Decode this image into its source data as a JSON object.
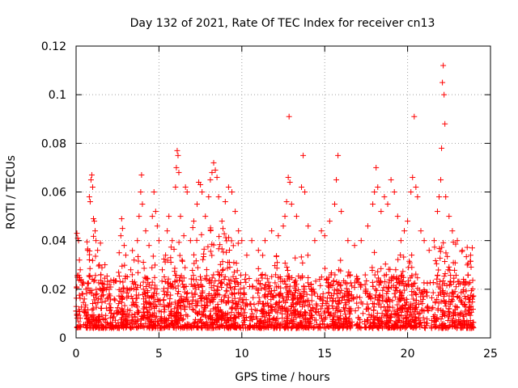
{
  "chart_data": {
    "type": "scatter",
    "title": "Day 132 of 2021, Rate Of TEC Index for receiver cn13",
    "xlabel": "GPS time / hours",
    "ylabel": "ROTI / TECUs",
    "xlim": [
      0,
      25
    ],
    "ylim": [
      0,
      0.12
    ],
    "xticks": [
      0,
      5,
      10,
      15,
      20,
      25
    ],
    "xtick_labels": [
      "0",
      "5",
      "10",
      "15",
      "20",
      "25"
    ],
    "yticks": [
      0,
      0.02,
      0.04,
      0.06,
      0.08,
      0.1,
      0.12
    ],
    "ytick_labels": [
      "0",
      "0.02",
      "0.04",
      "0.06",
      "0.08",
      "0.1",
      "0.12"
    ],
    "grid": true,
    "marker": "+",
    "color": "#ff0000",
    "series": [
      {
        "name": "ROTI",
        "points": [
          [
            0.0,
            0.011
          ],
          [
            0.05,
            0.043
          ],
          [
            0.1,
            0.041
          ],
          [
            0.15,
            0.04
          ],
          [
            0.2,
            0.032
          ],
          [
            0.25,
            0.028
          ],
          [
            0.3,
            0.024
          ],
          [
            0.4,
            0.018
          ],
          [
            0.5,
            0.016
          ],
          [
            0.6,
            0.02
          ],
          [
            0.7,
            0.036
          ],
          [
            0.8,
            0.058
          ],
          [
            0.85,
            0.056
          ],
          [
            0.9,
            0.065
          ],
          [
            0.95,
            0.067
          ],
          [
            1.0,
            0.062
          ],
          [
            1.05,
            0.049
          ],
          [
            1.1,
            0.048
          ],
          [
            1.15,
            0.044
          ],
          [
            1.2,
            0.04
          ],
          [
            1.3,
            0.036
          ],
          [
            1.4,
            0.03
          ],
          [
            1.5,
            0.026
          ],
          [
            1.7,
            0.022
          ],
          [
            2.0,
            0.018
          ],
          [
            2.3,
            0.016
          ],
          [
            2.6,
            0.035
          ],
          [
            2.7,
            0.042
          ],
          [
            2.75,
            0.049
          ],
          [
            2.8,
            0.045
          ],
          [
            2.9,
            0.038
          ],
          [
            3.0,
            0.034
          ],
          [
            3.3,
            0.028
          ],
          [
            3.5,
            0.032
          ],
          [
            3.7,
            0.04
          ],
          [
            3.8,
            0.05
          ],
          [
            3.9,
            0.06
          ],
          [
            3.95,
            0.067
          ],
          [
            4.0,
            0.055
          ],
          [
            4.2,
            0.044
          ],
          [
            4.4,
            0.038
          ],
          [
            4.6,
            0.05
          ],
          [
            4.7,
            0.06
          ],
          [
            4.8,
            0.052
          ],
          [
            4.9,
            0.046
          ],
          [
            5.0,
            0.04
          ],
          [
            5.2,
            0.028
          ],
          [
            5.4,
            0.034
          ],
          [
            5.5,
            0.044
          ],
          [
            5.6,
            0.05
          ],
          [
            5.8,
            0.04
          ],
          [
            6.0,
            0.062
          ],
          [
            6.05,
            0.07
          ],
          [
            6.1,
            0.077
          ],
          [
            6.15,
            0.075
          ],
          [
            6.2,
            0.068
          ],
          [
            6.3,
            0.05
          ],
          [
            6.5,
            0.042
          ],
          [
            6.6,
            0.062
          ],
          [
            6.7,
            0.06
          ],
          [
            6.9,
            0.04
          ],
          [
            7.1,
            0.048
          ],
          [
            7.3,
            0.055
          ],
          [
            7.4,
            0.064
          ],
          [
            7.5,
            0.063
          ],
          [
            7.6,
            0.06
          ],
          [
            7.8,
            0.05
          ],
          [
            8.0,
            0.058
          ],
          [
            8.1,
            0.065
          ],
          [
            8.2,
            0.068
          ],
          [
            8.3,
            0.072
          ],
          [
            8.4,
            0.069
          ],
          [
            8.5,
            0.066
          ],
          [
            8.6,
            0.058
          ],
          [
            8.8,
            0.048
          ],
          [
            9.0,
            0.056
          ],
          [
            9.2,
            0.062
          ],
          [
            9.4,
            0.06
          ],
          [
            9.6,
            0.052
          ],
          [
            9.8,
            0.044
          ],
          [
            10.0,
            0.04
          ],
          [
            10.3,
            0.034
          ],
          [
            10.6,
            0.04
          ],
          [
            11.0,
            0.036
          ],
          [
            11.4,
            0.04
          ],
          [
            11.8,
            0.044
          ],
          [
            12.2,
            0.042
          ],
          [
            12.5,
            0.046
          ],
          [
            12.6,
            0.05
          ],
          [
            12.7,
            0.056
          ],
          [
            12.8,
            0.066
          ],
          [
            12.85,
            0.091
          ],
          [
            12.9,
            0.064
          ],
          [
            13.0,
            0.055
          ],
          [
            13.3,
            0.05
          ],
          [
            13.6,
            0.062
          ],
          [
            13.7,
            0.075
          ],
          [
            13.8,
            0.06
          ],
          [
            14.0,
            0.046
          ],
          [
            14.4,
            0.04
          ],
          [
            14.8,
            0.044
          ],
          [
            15.0,
            0.042
          ],
          [
            15.3,
            0.048
          ],
          [
            15.6,
            0.055
          ],
          [
            15.7,
            0.065
          ],
          [
            15.8,
            0.075
          ],
          [
            16.0,
            0.052
          ],
          [
            16.4,
            0.04
          ],
          [
            16.8,
            0.038
          ],
          [
            17.2,
            0.04
          ],
          [
            17.6,
            0.046
          ],
          [
            17.9,
            0.055
          ],
          [
            18.0,
            0.06
          ],
          [
            18.1,
            0.07
          ],
          [
            18.2,
            0.062
          ],
          [
            18.4,
            0.052
          ],
          [
            18.6,
            0.058
          ],
          [
            18.8,
            0.055
          ],
          [
            19.0,
            0.065
          ],
          [
            19.2,
            0.06
          ],
          [
            19.4,
            0.05
          ],
          [
            19.6,
            0.04
          ],
          [
            19.8,
            0.044
          ],
          [
            20.0,
            0.048
          ],
          [
            20.2,
            0.06
          ],
          [
            20.3,
            0.066
          ],
          [
            20.4,
            0.091
          ],
          [
            20.5,
            0.062
          ],
          [
            20.6,
            0.058
          ],
          [
            20.8,
            0.044
          ],
          [
            21.0,
            0.04
          ],
          [
            21.3,
            0.036
          ],
          [
            21.6,
            0.04
          ],
          [
            21.8,
            0.052
          ],
          [
            21.9,
            0.058
          ],
          [
            22.0,
            0.065
          ],
          [
            22.05,
            0.078
          ],
          [
            22.1,
            0.105
          ],
          [
            22.15,
            0.112
          ],
          [
            22.2,
            0.1
          ],
          [
            22.25,
            0.088
          ],
          [
            22.3,
            0.058
          ],
          [
            22.5,
            0.05
          ],
          [
            22.7,
            0.044
          ],
          [
            23.0,
            0.04
          ],
          [
            23.3,
            0.036
          ],
          [
            23.6,
            0.03
          ],
          [
            23.8,
            0.034
          ],
          [
            23.9,
            0.037
          ]
        ],
        "density_bands": [
          {
            "x": [
              0.0,
              24.0
            ],
            "baseline": [
              0.004,
              0.026
            ]
          },
          {
            "x": [
              0.6,
              1.8
            ],
            "baseline": [
              0.004,
              0.042
            ]
          },
          {
            "x": [
              2.5,
              4.8
            ],
            "baseline": [
              0.004,
              0.036
            ]
          },
          {
            "x": [
              5.3,
              6.6
            ],
            "baseline": [
              0.004,
              0.04
            ]
          },
          {
            "x": [
              7.0,
              9.8
            ],
            "baseline": [
              0.004,
              0.046
            ]
          },
          {
            "x": [
              10.8,
              14.2
            ],
            "baseline": [
              0.004,
              0.034
            ]
          },
          {
            "x": [
              15.0,
              16.5
            ],
            "baseline": [
              0.004,
              0.032
            ]
          },
          {
            "x": [
              17.8,
              20.8
            ],
            "baseline": [
              0.004,
              0.036
            ]
          },
          {
            "x": [
              21.6,
              23.9
            ],
            "baseline": [
              0.004,
              0.04
            ]
          }
        ]
      }
    ]
  }
}
